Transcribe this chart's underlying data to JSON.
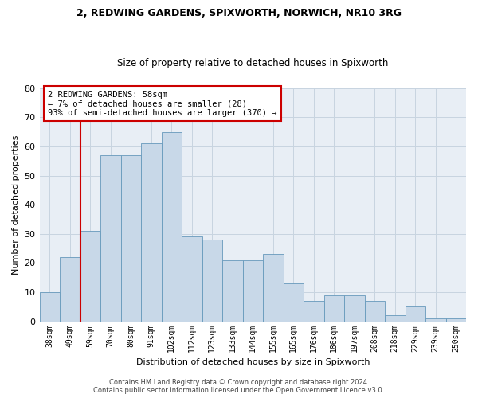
{
  "title1": "2, REDWING GARDENS, SPIXWORTH, NORWICH, NR10 3RG",
  "title2": "Size of property relative to detached houses in Spixworth",
  "xlabel": "Distribution of detached houses by size in Spixworth",
  "ylabel": "Number of detached properties",
  "categories": [
    "38sqm",
    "49sqm",
    "59sqm",
    "70sqm",
    "80sqm",
    "91sqm",
    "102sqm",
    "112sqm",
    "123sqm",
    "133sqm",
    "144sqm",
    "155sqm",
    "165sqm",
    "176sqm",
    "186sqm",
    "197sqm",
    "208sqm",
    "218sqm",
    "229sqm",
    "239sqm",
    "250sqm"
  ],
  "bar_heights": [
    10,
    22,
    31,
    57,
    57,
    61,
    65,
    29,
    28,
    21,
    21,
    23,
    13,
    7,
    9,
    9,
    7,
    2,
    5,
    1,
    1
  ],
  "ylim": [
    0,
    80
  ],
  "yticks": [
    0,
    10,
    20,
    30,
    40,
    50,
    60,
    70,
    80
  ],
  "bar_color": "#c8d8e8",
  "bar_edge_color": "#6699bb",
  "vline_color": "#cc0000",
  "vline_pos": 1.5,
  "annotation_text": "2 REDWING GARDENS: 58sqm\n← 7% of detached houses are smaller (28)\n93% of semi-detached houses are larger (370) →",
  "annotation_box_color": "#ffffff",
  "annotation_box_edge_color": "#cc0000",
  "footer1": "Contains HM Land Registry data © Crown copyright and database right 2024.",
  "footer2": "Contains public sector information licensed under the Open Government Licence v3.0.",
  "background_color": "#ffffff",
  "ax_background": "#e8eef5",
  "grid_color": "#c8d4e0"
}
